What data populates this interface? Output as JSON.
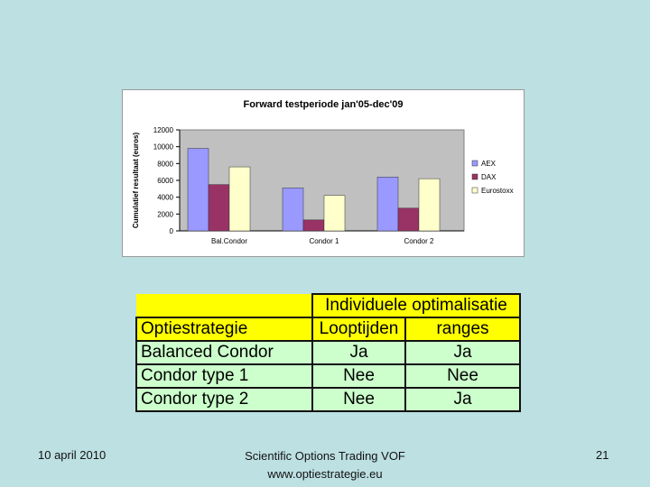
{
  "chart_data": {
    "type": "bar",
    "title": "Forward testperiode jan'05-dec'09",
    "ylabel": "Cumulatief resultaat (euros)",
    "xlabel": "",
    "categories": [
      "Bal.Condor",
      "Condor 1",
      "Condor 2"
    ],
    "series": [
      {
        "name": "AEX",
        "values": [
          9800,
          5100,
          6400
        ],
        "color": "#9999ff"
      },
      {
        "name": "DAX",
        "values": [
          5500,
          1300,
          2700
        ],
        "color": "#993366"
      },
      {
        "name": "Eurostoxx",
        "values": [
          7600,
          4200,
          6200
        ],
        "color": "#ffffcc"
      }
    ],
    "ylim": [
      0,
      12000
    ],
    "yticks": [
      0,
      2000,
      4000,
      6000,
      8000,
      10000,
      12000
    ],
    "grid": false,
    "legend": "right",
    "plot_bg": "#c0c0c0"
  },
  "table": {
    "group_header": "Individuele optimalisatie",
    "columns": [
      "Optiestrategie",
      "Looptijden",
      "ranges"
    ],
    "rows": [
      [
        "Balanced Condor",
        "Ja",
        "Ja"
      ],
      [
        "Condor type 1",
        "Nee",
        "Nee"
      ],
      [
        "Condor type 2",
        "Nee",
        "Ja"
      ]
    ],
    "colors": {
      "header": "#ffff00",
      "row": "#ccffcc"
    }
  },
  "footer": {
    "date": "10 april 2010",
    "company": "Scientific Options Trading VOF",
    "website": "www.optiestrategie.eu",
    "page": "21"
  },
  "colors": {
    "background": "#bde0e2"
  }
}
